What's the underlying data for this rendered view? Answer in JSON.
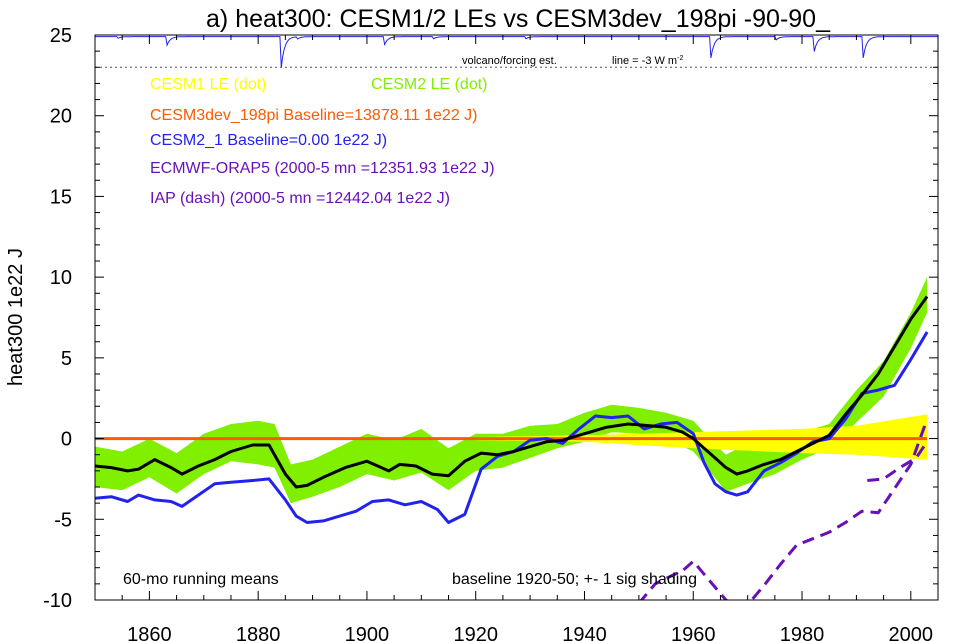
{
  "chart_data": {
    "type": "line",
    "title": "a) heat300: CESM1/2 LEs vs CESM3dev_198pi -90-90_",
    "ylabel": "heat300 1e22 J",
    "xlabel": "",
    "xlim": [
      1850,
      2005
    ],
    "ylim": [
      -10,
      25
    ],
    "x_ticks": [
      1860,
      1880,
      1900,
      1920,
      1940,
      1960,
      1980,
      2000
    ],
    "y_ticks": [
      -10,
      -5,
      0,
      5,
      10,
      15,
      20,
      25
    ],
    "grid": false,
    "colors": {
      "cesm1": "#ffff00",
      "cesm2_band": "#80f000",
      "cesm3": "#ff5a00",
      "cesm2_1": "#2222ee",
      "ecmwf": "#6a10b8",
      "iap": "#6a10b8",
      "ens_mean": "#000000",
      "volcano": "#2222ee"
    },
    "legend": {
      "cesm1": "CESM1 LE (dot)",
      "cesm2": "CESM2 LE (dot)",
      "cesm3": "CESM3dev_198pi Baseline=13878.11 1e22 J)",
      "cesm2_1": "CESM2_1 Baseline=0.00 1e22 J)",
      "ecmwf": "ECMWF-ORAP5 (2000-5 mn =12351.93 1e22 J)",
      "iap": "IAP (dash) (2000-5 mn =12442.04 1e22 J)"
    },
    "volcano_label": "volcano/forcing est.",
    "line_label": "line = -3 W m",
    "line_label_sup": "-2",
    "note_left": "60-mo running means",
    "note_right": "baseline 1920-50; +- 1 sig shading",
    "volcano_ref_value": 23,
    "series": [
      {
        "name": "CESM3dev_198pi",
        "role": "cesm3",
        "x": [
          1850,
          2003
        ],
        "values": [
          0,
          0
        ]
      },
      {
        "name": "CESM2 LE (dot)",
        "role": "cesm2_band",
        "x": [
          1850,
          1855,
          1860,
          1865,
          1870,
          1875,
          1880,
          1883,
          1886,
          1890,
          1895,
          1900,
          1905,
          1910,
          1915,
          1920,
          1925,
          1930,
          1935,
          1940,
          1945,
          1950,
          1955,
          1960,
          1963,
          1966,
          1970,
          1975,
          1980,
          1985,
          1990,
          1995,
          2000,
          2003
        ],
        "upper": [
          -0.5,
          -0.8,
          0.0,
          -0.9,
          0.3,
          0.9,
          1.1,
          0.9,
          -1.6,
          -1.3,
          -0.5,
          0.3,
          -0.1,
          0.6,
          -0.6,
          0.3,
          0.3,
          0.8,
          0.9,
          1.6,
          2.1,
          1.9,
          1.6,
          1.1,
          0.0,
          -1.0,
          -0.3,
          0.3,
          0.4,
          0.9,
          3.0,
          4.8,
          7.8,
          10.0
        ],
        "lower": [
          -3.0,
          -3.2,
          -2.4,
          -3.4,
          -2.2,
          -1.4,
          -1.6,
          -1.8,
          -4.0,
          -3.6,
          -3.0,
          -2.2,
          -2.6,
          -2.1,
          -3.2,
          -2.0,
          -1.8,
          -1.2,
          -0.6,
          -0.2,
          0.4,
          0.3,
          0.0,
          -0.8,
          -2.0,
          -3.3,
          -2.8,
          -2.2,
          -1.3,
          -0.6,
          1.0,
          2.6,
          5.6,
          7.8
        ]
      },
      {
        "name": "CESM1 LE (dot)",
        "role": "cesm1_band",
        "x": [
          1920,
          1940,
          1960,
          1980,
          1990,
          2003
        ],
        "upper": [
          0.1,
          0.2,
          0.4,
          0.6,
          0.8,
          1.5
        ],
        "lower": [
          -0.1,
          -0.2,
          -0.6,
          -0.9,
          -1.0,
          -1.3
        ]
      },
      {
        "name": "Ensemble mean",
        "role": "ens_mean",
        "x": [
          1850,
          1853,
          1856,
          1858,
          1861,
          1864,
          1866,
          1869,
          1872,
          1875,
          1879,
          1882,
          1885,
          1887,
          1889,
          1892,
          1896,
          1900,
          1904,
          1906,
          1909,
          1912,
          1915,
          1918,
          1921,
          1924,
          1927,
          1930,
          1933,
          1936,
          1940,
          1944,
          1948,
          1952,
          1955,
          1958,
          1960,
          1962,
          1964,
          1966,
          1968,
          1970,
          1973,
          1976,
          1979,
          1982,
          1985,
          1988,
          1991,
          1994,
          1997,
          2000,
          2003
        ],
        "values": [
          -1.7,
          -1.8,
          -2.0,
          -1.9,
          -1.3,
          -1.8,
          -2.2,
          -1.7,
          -1.3,
          -0.8,
          -0.4,
          -0.4,
          -2.2,
          -3.0,
          -2.9,
          -2.4,
          -1.8,
          -1.4,
          -2.0,
          -1.6,
          -1.7,
          -2.2,
          -2.3,
          -1.4,
          -0.9,
          -1.0,
          -0.8,
          -0.5,
          -0.2,
          -0.1,
          0.3,
          0.7,
          0.9,
          0.8,
          0.7,
          0.4,
          0.0,
          -0.6,
          -1.2,
          -1.8,
          -2.2,
          -2.0,
          -1.6,
          -1.3,
          -0.8,
          -0.3,
          0.2,
          1.5,
          2.7,
          4.0,
          5.7,
          7.4,
          8.8
        ]
      },
      {
        "name": "CESM2_1",
        "role": "cesm2_1",
        "x": [
          1850,
          1853,
          1856,
          1858,
          1861,
          1864,
          1866,
          1869,
          1872,
          1875,
          1879,
          1882,
          1885,
          1887,
          1889,
          1892,
          1895,
          1898,
          1901,
          1904,
          1907,
          1910,
          1913,
          1915,
          1918,
          1921,
          1924,
          1927,
          1930,
          1933,
          1936,
          1939,
          1942,
          1945,
          1948,
          1951,
          1954,
          1957,
          1960,
          1962,
          1964,
          1966,
          1968,
          1970,
          1973,
          1976,
          1979,
          1982,
          1985,
          1988,
          1991,
          1994,
          1997,
          2000,
          2003
        ],
        "values": [
          -3.7,
          -3.6,
          -3.9,
          -3.5,
          -3.8,
          -3.9,
          -4.2,
          -3.5,
          -2.8,
          -2.7,
          -2.6,
          -2.5,
          -3.8,
          -4.8,
          -5.2,
          -5.1,
          -4.8,
          -4.5,
          -3.9,
          -3.8,
          -4.1,
          -3.9,
          -4.4,
          -5.2,
          -4.7,
          -1.9,
          -1.1,
          -0.8,
          -0.1,
          0.0,
          -0.3,
          0.6,
          1.4,
          1.3,
          1.4,
          0.6,
          0.9,
          1.0,
          0.3,
          -1.5,
          -2.8,
          -3.3,
          -3.5,
          -3.3,
          -2.0,
          -1.5,
          -0.9,
          -0.2,
          0.0,
          1.2,
          2.8,
          3.0,
          3.3,
          4.9,
          6.6
        ]
      },
      {
        "name": "IAP (dash)",
        "role": "iap",
        "x": [
          1950,
          1953,
          1956,
          1958,
          1960,
          1962,
          1964,
          1966,
          1968,
          1970,
          1973,
          1976,
          1979,
          1982,
          1985,
          1988,
          1991,
          1994,
          1997,
          2000,
          2003
        ],
        "values": [
          -10.2,
          -9.0,
          -8.5,
          -8.2,
          -7.6,
          -8.4,
          -9.2,
          -10.0,
          -10.4,
          -10.3,
          -9.1,
          -7.8,
          -6.6,
          -6.2,
          -5.8,
          -5.2,
          -4.5,
          -4.6,
          -3.1,
          -1.6,
          1.2
        ]
      },
      {
        "name": "ECMWF-ORAP5",
        "role": "ecmwf",
        "x": [
          1992,
          1995,
          1998,
          2001,
          2003
        ],
        "values": [
          -2.6,
          -2.5,
          -1.8,
          -1.2,
          -0.2
        ]
      }
    ],
    "volcano_dips": [
      {
        "year": 1854,
        "depth": 0.15
      },
      {
        "year": 1863,
        "depth": 0.8
      },
      {
        "year": 1884,
        "depth": 2.9
      },
      {
        "year": 1887,
        "depth": 0.2
      },
      {
        "year": 1903,
        "depth": 0.75
      },
      {
        "year": 1912,
        "depth": 0.2
      },
      {
        "year": 1929,
        "depth": 0.2
      },
      {
        "year": 1963,
        "depth": 2.0
      },
      {
        "year": 1975,
        "depth": 0.3
      },
      {
        "year": 1982,
        "depth": 1.4
      },
      {
        "year": 1991,
        "depth": 2.0
      }
    ]
  }
}
